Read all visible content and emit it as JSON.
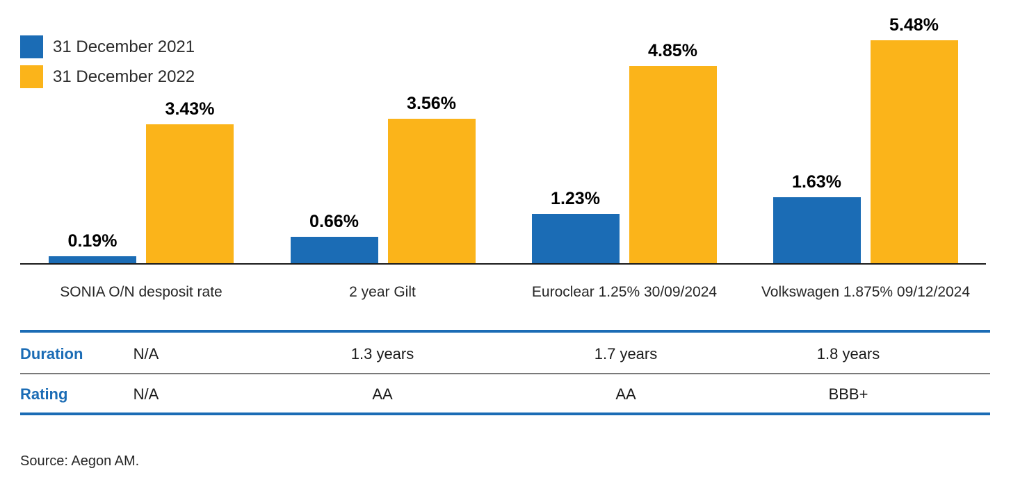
{
  "chart_data": {
    "type": "bar",
    "title": "",
    "categories": [
      "SONIA O/N desposit rate",
      "2 year Gilt",
      "Euroclear 1.25% 30/09/2024",
      "Volkswagen 1.875% 09/12/2024"
    ],
    "series": [
      {
        "name": "31 December 2021",
        "color": "#1B6CB5",
        "values": [
          0.19,
          0.66,
          1.23,
          1.63
        ],
        "labels": [
          "0.19%",
          "0.66%",
          "1.23%",
          "1.63%"
        ]
      },
      {
        "name": "31 December 2022",
        "color": "#FBB41A",
        "values": [
          3.43,
          3.56,
          4.85,
          5.48
        ],
        "labels": [
          "3.43%",
          "3.56%",
          "4.85%",
          "5.48%"
        ]
      }
    ],
    "xlabel": "",
    "ylabel": "",
    "ylim": [
      0,
      6
    ],
    "grid": false,
    "legend_position": "top-left",
    "value_labels": "above-bars"
  },
  "table": {
    "rows": [
      {
        "header": "Duration",
        "values": [
          "N/A",
          "1.3 years",
          "1.7 years",
          "1.8 years"
        ]
      },
      {
        "header": "Rating",
        "values": [
          "N/A",
          "AA",
          "AA",
          "BBB+"
        ]
      }
    ]
  },
  "source": "Source: Aegon AM.",
  "colors": {
    "bar_2021": "#1B6CB5",
    "bar_2022": "#FBB41A",
    "table_border_blue": "#1B6CB5",
    "table_border_gray": "#7A7A7A",
    "axis_line": "#1A1A1A",
    "row_header_text": "#1B6CB5",
    "value_label_text": "#000000"
  }
}
